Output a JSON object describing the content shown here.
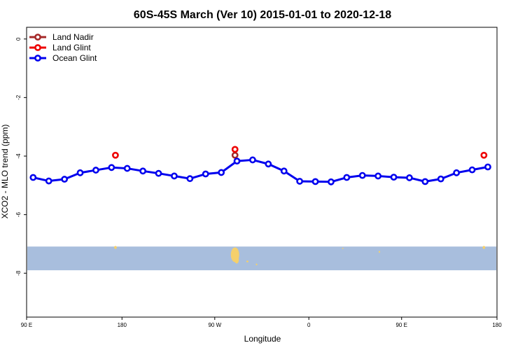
{
  "chart_data": {
    "type": "line",
    "title": "60S-45S March (Ver 10)   2015-01-01 to 2020-12-18",
    "xlabel": "Longitude",
    "ylabel": "XCO2 - MLO trend (ppm)",
    "xlim": [
      -90,
      270
    ],
    "ylim": [
      -9.5,
      0.4
    ],
    "x_ticks": [
      {
        "value": -90,
        "label": "90 E"
      },
      {
        "value": -17,
        "label": "180"
      },
      {
        "value": 54,
        "label": "90 W"
      },
      {
        "value": 126,
        "label": "0"
      },
      {
        "value": 197,
        "label": "90 E"
      },
      {
        "value": 270,
        "label": "180"
      }
    ],
    "y_ticks": [
      {
        "value": 0,
        "label": "0"
      },
      {
        "value": -2,
        "label": "-2"
      },
      {
        "value": -4,
        "label": "-4"
      },
      {
        "value": -6,
        "label": "-6"
      },
      {
        "value": -8,
        "label": "-8"
      }
    ],
    "legend_position": "top-left",
    "grid": false,
    "series": [
      {
        "name": "Land Nadir",
        "color": "#a52a2a",
        "style": "points",
        "points": [
          [
            69.5,
            -3.97
          ]
        ]
      },
      {
        "name": "Land Glint",
        "color": "#ee0000",
        "style": "points",
        "points": [
          [
            -22,
            -3.97
          ],
          [
            69.5,
            -3.77
          ],
          [
            260,
            -3.97
          ]
        ]
      },
      {
        "name": "Ocean Glint",
        "color": "#0000ee",
        "style": "line+points",
        "points": [
          [
            -85,
            -4.73
          ],
          [
            -73,
            -4.85
          ],
          [
            -61,
            -4.79
          ],
          [
            -49,
            -4.57
          ],
          [
            -37,
            -4.48
          ],
          [
            -25,
            -4.39
          ],
          [
            -13,
            -4.42
          ],
          [
            -1,
            -4.51
          ],
          [
            11,
            -4.59
          ],
          [
            23,
            -4.68
          ],
          [
            35,
            -4.77
          ],
          [
            47,
            -4.61
          ],
          [
            59,
            -4.56
          ],
          [
            71,
            -4.17
          ],
          [
            83,
            -4.13
          ],
          [
            95,
            -4.27
          ],
          [
            107,
            -4.51
          ],
          [
            119,
            -4.86
          ],
          [
            131,
            -4.87
          ],
          [
            143,
            -4.88
          ],
          [
            155,
            -4.73
          ],
          [
            167,
            -4.66
          ],
          [
            179,
            -4.68
          ],
          [
            191,
            -4.72
          ],
          [
            203,
            -4.74
          ],
          [
            215,
            -4.87
          ],
          [
            227,
            -4.78
          ],
          [
            239,
            -4.57
          ],
          [
            251,
            -4.47
          ],
          [
            263,
            -4.37
          ]
        ]
      }
    ],
    "map_band": {
      "ocean_color": "#a8bedd",
      "land_color": "#f5d06b",
      "ymin": -7.9,
      "ymax": -7.09,
      "land_spots": [
        {
          "x": 69.5,
          "y": -7.37,
          "rx": 3.2,
          "ry": 0.25
        },
        {
          "x": 70.8,
          "y": -7.55,
          "rx": 1.6,
          "ry": 0.12
        },
        {
          "x": -22,
          "y": -7.12,
          "rx": 1.0,
          "ry": 0.05
        },
        {
          "x": 260,
          "y": -7.12,
          "rx": 1.0,
          "ry": 0.05
        },
        {
          "x": 79,
          "y": -7.6,
          "rx": 0.8,
          "ry": 0.03
        },
        {
          "x": 86,
          "y": -7.7,
          "rx": 0.6,
          "ry": 0.03
        },
        {
          "x": 180,
          "y": -7.27,
          "rx": 0.6,
          "ry": 0.03
        },
        {
          "x": 152,
          "y": -7.15,
          "rx": 0.5,
          "ry": 0.02
        }
      ]
    }
  }
}
